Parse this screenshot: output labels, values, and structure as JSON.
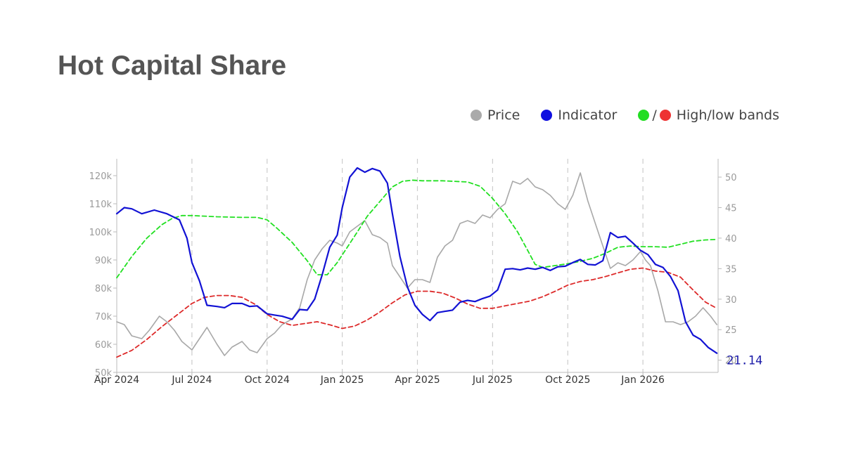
{
  "title": "Hot Capital Share",
  "legend": [
    {
      "label": "Price",
      "color": "#aaaaaa"
    },
    {
      "label": "Indicator",
      "color": "#1010e0"
    },
    {
      "label": "High/low bands",
      "colors": [
        "#22dd22",
        "#ee3333"
      ],
      "separator": "/"
    }
  ],
  "colors": {
    "price": "#a8a8a8",
    "indicator": "#1212d4",
    "high_band": "#22e022",
    "low_band": "#dd2a2a",
    "grid": "#cccccc",
    "axis": "#bbbbbb",
    "last_value": "#1a1aa8"
  },
  "chart_data": {
    "type": "line",
    "x_ticks": [
      "Apr 2024",
      "Jul 2024",
      "Oct 2024",
      "Jan 2025",
      "Apr 2025",
      "Jul 2025",
      "Oct 2025",
      "Jan 2026"
    ],
    "x_range_months": [
      0,
      24
    ],
    "y_left": {
      "ticks": [
        "50k",
        "60k",
        "70k",
        "80k",
        "90k",
        "100k",
        "110k",
        "120k"
      ],
      "range": [
        50000,
        126000
      ]
    },
    "y_right": {
      "ticks": [
        "20",
        "25",
        "30",
        "35",
        "40",
        "45",
        "50"
      ],
      "range": [
        18,
        53
      ]
    },
    "grid": "vertical dashed",
    "last_value_label": "21.14",
    "series": [
      {
        "name": "Price",
        "axis": "left",
        "x": [
          0,
          0.3,
          0.6,
          1.0,
          1.3,
          1.7,
          2.0,
          2.3,
          2.6,
          3.0,
          3.3,
          3.6,
          4.0,
          4.3,
          4.6,
          5.0,
          5.3,
          5.6,
          6.0,
          6.3,
          6.6,
          7.0,
          7.3,
          7.6,
          7.9,
          8.2,
          8.5,
          8.8,
          9.0,
          9.3,
          9.6,
          9.9,
          10.2,
          10.5,
          10.8,
          11.0,
          11.3,
          11.6,
          11.9,
          12.2,
          12.5,
          12.8,
          13.1,
          13.4,
          13.7,
          14.0,
          14.3,
          14.6,
          14.9,
          15.2,
          15.5,
          15.8,
          16.1,
          16.4,
          16.7,
          17.0,
          17.3,
          17.6,
          17.9,
          18.2,
          18.5,
          18.8,
          19.1,
          19.4,
          19.7,
          20.0,
          20.3,
          20.6,
          20.9,
          21.1,
          21.3,
          21.6,
          21.9,
          22.2,
          22.5,
          22.8,
          23.1,
          23.4,
          23.7,
          23.95
        ],
        "values": [
          68000,
          67000,
          63000,
          62000,
          65000,
          70000,
          68000,
          65000,
          61000,
          58000,
          62000,
          66000,
          60000,
          56000,
          59000,
          61000,
          58000,
          57000,
          62000,
          64000,
          67000,
          69000,
          73000,
          83000,
          90000,
          94000,
          97000,
          96000,
          95000,
          100000,
          102000,
          104000,
          99000,
          98000,
          96000,
          88000,
          84000,
          80000,
          83000,
          83000,
          82000,
          91000,
          95000,
          97000,
          103000,
          104000,
          103000,
          106000,
          105000,
          108000,
          110000,
          118000,
          117000,
          119000,
          116000,
          115000,
          113000,
          110000,
          108000,
          113000,
          121000,
          111000,
          103000,
          95000,
          87000,
          89000,
          88000,
          90000,
          93000,
          90000,
          88000,
          79000,
          68000,
          68000,
          67000,
          68000,
          70000,
          73000,
          70000,
          67000
        ]
      },
      {
        "name": "Indicator",
        "axis": "right",
        "x": [
          0,
          0.3,
          0.6,
          1.0,
          1.5,
          2.0,
          2.5,
          2.8,
          3.0,
          3.3,
          3.6,
          4.0,
          4.3,
          4.6,
          5.0,
          5.3,
          5.6,
          6.0,
          6.3,
          6.6,
          7.0,
          7.3,
          7.6,
          7.9,
          8.2,
          8.5,
          8.8,
          9.0,
          9.3,
          9.6,
          9.9,
          10.2,
          10.5,
          10.8,
          11.0,
          11.3,
          11.6,
          11.9,
          12.2,
          12.5,
          12.8,
          13.1,
          13.4,
          13.7,
          14.0,
          14.3,
          14.6,
          14.9,
          15.2,
          15.5,
          15.8,
          16.1,
          16.4,
          16.7,
          17.0,
          17.3,
          17.6,
          17.9,
          18.2,
          18.5,
          18.8,
          19.1,
          19.4,
          19.7,
          20.0,
          20.3,
          20.6,
          20.9,
          21.2,
          21.5,
          21.8,
          22.1,
          22.4,
          22.7,
          23.0,
          23.3,
          23.6,
          23.95
        ],
        "values": [
          44,
          45,
          44.8,
          44,
          44.6,
          44,
          43,
          40,
          36,
          33,
          29,
          28.8,
          28.6,
          29.3,
          29.3,
          28.8,
          28.9,
          27.6,
          27.4,
          27.2,
          26.7,
          28.3,
          28.2,
          30,
          34,
          38.5,
          40.5,
          45,
          50,
          51.5,
          50.8,
          51.4,
          51,
          49,
          44,
          37,
          32,
          29,
          27.5,
          26.5,
          27.8,
          28,
          28.2,
          29.5,
          29.8,
          29.6,
          30.1,
          30.5,
          31.5,
          34.9,
          35,
          34.8,
          35.1,
          34.9,
          35.2,
          34.7,
          35.3,
          35.4,
          36,
          36.5,
          35.7,
          35.6,
          36.3,
          40.9,
          40.1,
          40.3,
          39.2,
          38.0,
          37.3,
          35.7,
          35.2,
          33.7,
          31.4,
          26.3,
          24.1,
          23.4,
          22.1,
          21.14
        ]
      },
      {
        "name": "High band",
        "axis": "right",
        "style": "dashed",
        "x": [
          0,
          0.6,
          1.2,
          1.8,
          2.2,
          2.6,
          3.0,
          4.0,
          5.0,
          5.6,
          6.0,
          6.4,
          7.0,
          7.6,
          8.0,
          8.4,
          8.8,
          9.2,
          9.6,
          10.0,
          10.5,
          11.0,
          11.4,
          11.8,
          12.2,
          13.0,
          14.0,
          14.5,
          15.0,
          15.5,
          16.0,
          16.4,
          16.7,
          17.0,
          17.5,
          18.0,
          18.5,
          19.0,
          19.5,
          20.0,
          20.5,
          21.0,
          21.5,
          22.0,
          22.5,
          23.0,
          23.5,
          23.95
        ],
        "values": [
          33.5,
          37,
          40,
          42.2,
          43.2,
          43.7,
          43.7,
          43.5,
          43.4,
          43.4,
          43,
          41.6,
          39.3,
          36.3,
          34.0,
          34.0,
          36,
          38.5,
          41,
          43.6,
          46,
          48.4,
          49.3,
          49.5,
          49.4,
          49.4,
          49.2,
          48.5,
          46.5,
          44,
          41,
          38,
          35.7,
          35.2,
          35.5,
          35.8,
          36.2,
          36.7,
          37.5,
          38.5,
          38.7,
          38.6,
          38.6,
          38.5,
          39,
          39.5,
          39.7,
          39.8
        ]
      },
      {
        "name": "Low band",
        "axis": "right",
        "style": "dashed",
        "x": [
          0,
          0.6,
          1.2,
          1.8,
          2.4,
          3.0,
          3.5,
          4.0,
          4.5,
          5.0,
          5.5,
          6.0,
          6.5,
          7.0,
          7.5,
          8.0,
          8.5,
          9.0,
          9.5,
          10.0,
          10.5,
          11.0,
          11.5,
          12.0,
          12.5,
          13.0,
          13.5,
          14.0,
          14.5,
          15.0,
          15.5,
          16.0,
          16.5,
          17.0,
          17.5,
          18.0,
          18.5,
          19.0,
          19.5,
          20.0,
          20.5,
          21.0,
          21.5,
          22.0,
          22.5,
          23.0,
          23.5,
          23.95
        ],
        "values": [
          20.5,
          21.6,
          23.4,
          25.5,
          27.4,
          29.3,
          30.3,
          30.6,
          30.6,
          30.3,
          29.2,
          27.5,
          26.3,
          25.7,
          26.0,
          26.3,
          25.8,
          25.2,
          25.6,
          26.6,
          27.9,
          29.4,
          30.7,
          31.3,
          31.3,
          31.0,
          30.2,
          29.2,
          28.5,
          28.5,
          28.9,
          29.3,
          29.7,
          30.4,
          31.3,
          32.3,
          32.9,
          33.2,
          33.7,
          34.3,
          34.9,
          35.1,
          34.6,
          34.4,
          33.6,
          31.5,
          29.5,
          28.5
        ]
      }
    ]
  }
}
